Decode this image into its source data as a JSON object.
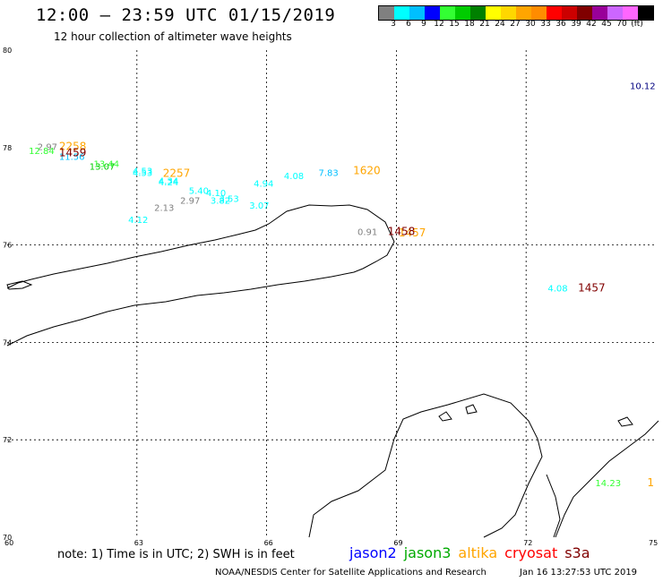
{
  "title": "12:00 – 23:59 UTC 01/15/2019",
  "subtitle": "12 hour collection of altimeter wave heights",
  "colorbar": {
    "colors": [
      "#808080",
      "#00ffff",
      "#00bfff",
      "#0000ff",
      "#33ff33",
      "#00cc00",
      "#008000",
      "#ffff00",
      "#ffd700",
      "#ffa500",
      "#ff8c00",
      "#ff0000",
      "#cc0000",
      "#800000",
      "#990099",
      "#cc66ff",
      "#ff66ff",
      "#000000"
    ],
    "labels": [
      "3",
      "6",
      "9",
      "12",
      "15",
      "18",
      "21",
      "24",
      "27",
      "30",
      "33",
      "36",
      "39",
      "42",
      "45",
      "70",
      "(ft)"
    ]
  },
  "axes": {
    "lat_labels": [
      "80",
      "78",
      "76",
      "74",
      "72",
      "70"
    ],
    "lon_labels": [
      "60",
      "63",
      "66",
      "69",
      "72",
      "75"
    ]
  },
  "wave_heights": [
    {
      "lon": 74.4,
      "lat": 79.2,
      "value": "10.12",
      "color": "#000080"
    },
    {
      "lon": 60.7,
      "lat": 77.95,
      "value": "2.97",
      "color": "#808080"
    },
    {
      "lon": 60.5,
      "lat": 77.87,
      "value": "12.84",
      "color": "#33ff33"
    },
    {
      "lon": 61.2,
      "lat": 77.75,
      "value": "11.56",
      "color": "#00bfff"
    },
    {
      "lon": 62.0,
      "lat": 77.6,
      "value": "13.44",
      "color": "#33ff33"
    },
    {
      "lon": 61.9,
      "lat": 77.55,
      "value": "13.07",
      "color": "#00cc00"
    },
    {
      "lon": 62.9,
      "lat": 77.45,
      "value": "4.53",
      "color": "#00ffff"
    },
    {
      "lon": 62.9,
      "lat": 77.42,
      "value": "4.53",
      "color": "#00ffff"
    },
    {
      "lon": 63.5,
      "lat": 77.25,
      "value": "4.34",
      "color": "#00ffff"
    },
    {
      "lon": 63.5,
      "lat": 77.22,
      "value": "4.24",
      "color": "#00ffff"
    },
    {
      "lon": 67.2,
      "lat": 77.42,
      "value": "7.83",
      "color": "#00bfff"
    },
    {
      "lon": 66.4,
      "lat": 77.35,
      "value": "4.08",
      "color": "#00ffff"
    },
    {
      "lon": 65.7,
      "lat": 77.2,
      "value": "4.94",
      "color": "#00ffff"
    },
    {
      "lon": 64.2,
      "lat": 77.05,
      "value": "5.40",
      "color": "#00ffff"
    },
    {
      "lon": 64.6,
      "lat": 77.0,
      "value": "4.10",
      "color": "#00ffff"
    },
    {
      "lon": 64.9,
      "lat": 76.88,
      "value": "3.53",
      "color": "#00ffff"
    },
    {
      "lon": 64.7,
      "lat": 76.85,
      "value": "3.82",
      "color": "#00ffff"
    },
    {
      "lon": 65.6,
      "lat": 76.75,
      "value": "3.07",
      "color": "#00ffff"
    },
    {
      "lon": 64.0,
      "lat": 76.85,
      "value": "2.97",
      "color": "#808080"
    },
    {
      "lon": 63.4,
      "lat": 76.7,
      "value": "2.13",
      "color": "#808080"
    },
    {
      "lon": 62.8,
      "lat": 76.45,
      "value": "4.12",
      "color": "#00ffff"
    },
    {
      "lon": 68.1,
      "lat": 76.2,
      "value": "0.91",
      "color": "#808080"
    },
    {
      "lon": 72.5,
      "lat": 75.05,
      "value": "4.08",
      "color": "#00ffff"
    }
  ],
  "pass_times": [
    {
      "lon": 61.2,
      "lat": 77.95,
      "value": "2258",
      "color": "#ffa500"
    },
    {
      "lon": 61.2,
      "lat": 77.82,
      "value": "1459",
      "color": "#800000"
    },
    {
      "lon": 63.6,
      "lat": 77.4,
      "value": "2257",
      "color": "#ffa500"
    },
    {
      "lon": 68.0,
      "lat": 77.45,
      "value": "1620",
      "color": "#ffa500"
    },
    {
      "lon": 69.05,
      "lat": 76.18,
      "value": "1457",
      "color": "#ffa500"
    },
    {
      "lon": 68.8,
      "lat": 76.2,
      "value": "1458",
      "color": "#800000"
    },
    {
      "lon": 73.2,
      "lat": 75.05,
      "value": "1457",
      "color": "#800000"
    },
    {
      "lon": 74.8,
      "lat": 71.05,
      "value": "1",
      "color": "#ffa500"
    }
  ],
  "extra_values": [
    {
      "lon": 73.6,
      "lat": 71.05,
      "value": "14.23",
      "color": "#33ff33"
    }
  ],
  "note": "note:  1) Time is in UTC;  2) SWH is in feet",
  "legend": [
    {
      "label": "jason2",
      "color": "#0000ff"
    },
    {
      "label": "jason3",
      "color": "#00aa00"
    },
    {
      "label": "altika",
      "color": "#ffa500"
    },
    {
      "label": "cryosat",
      "color": "#ff0000"
    },
    {
      "label": "s3a",
      "color": "#800000"
    }
  ],
  "credit": "NOAA/NESDIS Center for Satellite Applications and Research",
  "credit_time": "Jan 16 13:27:53 UTC 2019"
}
